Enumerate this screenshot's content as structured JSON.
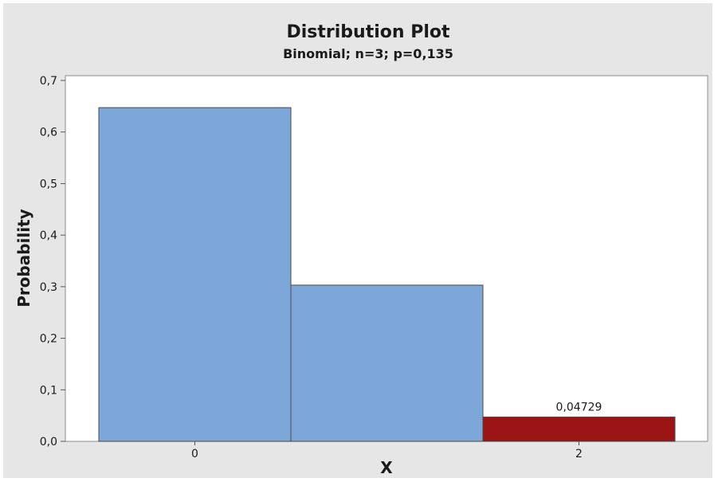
{
  "chart_data": {
    "type": "bar",
    "title": "Distribution Plot",
    "subtitle": "Binomial; n=3; p=0,135",
    "xlabel": "X",
    "ylabel": "Probability",
    "categories": [
      0,
      1,
      2
    ],
    "values": [
      0.6473,
      0.303,
      0.04729
    ],
    "x_tick_labels": [
      "0",
      "",
      "2"
    ],
    "highlight": {
      "category": 2,
      "color": "#9b1414",
      "label": "0,04729"
    },
    "bar_color": "#7da6d9",
    "ylim": [
      0,
      0.7
    ],
    "y_ticks": [
      0.0,
      0.1,
      0.2,
      0.3,
      0.4,
      0.5,
      0.6,
      0.7
    ],
    "y_tick_labels": [
      "0,0",
      "0,1",
      "0,2",
      "0,3",
      "0,4",
      "0,5",
      "0,6",
      "0,7"
    ],
    "grid": false,
    "legend": "none"
  }
}
